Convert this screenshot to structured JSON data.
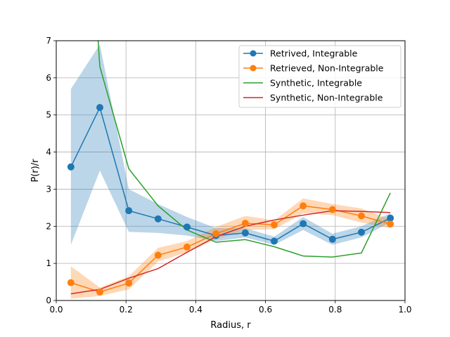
{
  "chart_data": {
    "type": "line",
    "title": "",
    "xlabel": "Radius, r",
    "ylabel": "P(r)/r",
    "xlim": [
      0.0,
      1.0
    ],
    "ylim": [
      0,
      7
    ],
    "xticks": [
      "0.0",
      "0.2",
      "0.4",
      "0.6",
      "0.8",
      "1.0"
    ],
    "yticks": [
      "0",
      "1",
      "2",
      "3",
      "4",
      "5",
      "6",
      "7"
    ],
    "grid": true,
    "legend_position": "top-right",
    "series": [
      {
        "name": "Retrived, Integrable",
        "color": "#1f77b4",
        "marker": "circle",
        "x": [
          0.042,
          0.125,
          0.208,
          0.292,
          0.375,
          0.458,
          0.542,
          0.625,
          0.708,
          0.792,
          0.875,
          0.958
        ],
        "y": [
          3.6,
          5.2,
          2.42,
          2.2,
          1.98,
          1.75,
          1.82,
          1.6,
          2.07,
          1.65,
          1.84,
          2.22
        ],
        "band_lower": [
          1.5,
          3.5,
          1.85,
          1.82,
          1.75,
          1.6,
          1.7,
          1.5,
          1.9,
          1.5,
          1.7,
          2.1
        ],
        "band_upper": [
          5.7,
          6.9,
          3.0,
          2.6,
          2.25,
          1.95,
          1.95,
          1.72,
          2.25,
          1.8,
          2.0,
          2.35
        ]
      },
      {
        "name": "Retrieved, Non-Integrable",
        "color": "#ff7f0e",
        "marker": "circle",
        "x": [
          0.042,
          0.125,
          0.208,
          0.292,
          0.375,
          0.458,
          0.542,
          0.625,
          0.708,
          0.792,
          0.875,
          0.958
        ],
        "y": [
          0.48,
          0.23,
          0.47,
          1.22,
          1.44,
          1.8,
          2.08,
          2.04,
          2.55,
          2.45,
          2.28,
          2.06
        ],
        "band_lower": [
          0.05,
          0.12,
          0.3,
          1.05,
          1.3,
          1.65,
          1.9,
          1.92,
          2.35,
          2.3,
          2.1,
          1.95
        ],
        "band_upper": [
          0.92,
          0.35,
          0.65,
          1.42,
          1.6,
          1.98,
          2.28,
          2.16,
          2.75,
          2.6,
          2.48,
          2.18
        ]
      },
      {
        "name": "Synthetic, Integrable",
        "color": "#2ca02c",
        "marker": "none",
        "x": [
          0.12,
          0.125,
          0.208,
          0.292,
          0.375,
          0.458,
          0.542,
          0.625,
          0.708,
          0.792,
          0.875,
          0.958
        ],
        "y": [
          7.0,
          6.3,
          3.55,
          2.55,
          1.9,
          1.57,
          1.64,
          1.45,
          1.2,
          1.17,
          1.28,
          2.9
        ]
      },
      {
        "name": "Synthetic, Non-Integrable",
        "color": "#d62728",
        "marker": "none",
        "x": [
          0.042,
          0.125,
          0.208,
          0.292,
          0.375,
          0.458,
          0.542,
          0.625,
          0.708,
          0.792,
          0.875,
          0.958
        ],
        "y": [
          0.18,
          0.3,
          0.6,
          0.86,
          1.3,
          1.72,
          2.0,
          2.17,
          2.3,
          2.42,
          2.4,
          2.37
        ]
      }
    ]
  }
}
